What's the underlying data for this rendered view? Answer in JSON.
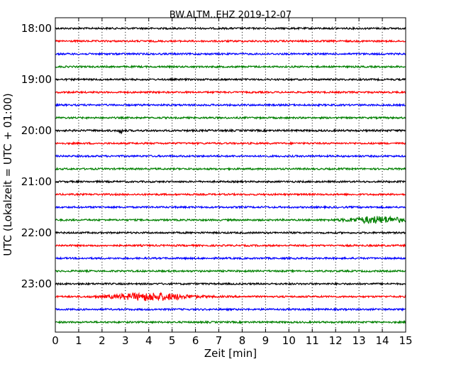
{
  "chart_data": {
    "type": "line",
    "title": "BW.ALTM..EHZ 2019-12-07",
    "xlabel": "Zeit  [min]",
    "ylabel": "UTC (Lokalzeit = UTC + 01:00)",
    "xlim": [
      0,
      15
    ],
    "x_ticks": [
      "0",
      "1",
      "2",
      "3",
      "4",
      "5",
      "6",
      "7",
      "8",
      "9",
      "10",
      "11",
      "12",
      "13",
      "14",
      "15"
    ],
    "y_ticks": [
      "18:00",
      "19:00",
      "20:00",
      "21:00",
      "22:00",
      "23:00"
    ],
    "trace_interval_minutes": 15,
    "trace_colors": [
      "#000000",
      "#ff0000",
      "#0000ff",
      "#008000"
    ],
    "grid": "vertical dotted lines at each minute",
    "traces": [
      {
        "start": "18:00",
        "color": "#000000",
        "amplitude": 1.0
      },
      {
        "start": "18:15",
        "color": "#ff0000",
        "amplitude": 1.0
      },
      {
        "start": "18:30",
        "color": "#0000ff",
        "amplitude": 1.0
      },
      {
        "start": "18:45",
        "color": "#008000",
        "amplitude": 1.0
      },
      {
        "start": "19:00",
        "color": "#000000",
        "amplitude": 1.0
      },
      {
        "start": "19:15",
        "color": "#ff0000",
        "amplitude": 1.0
      },
      {
        "start": "19:30",
        "color": "#0000ff",
        "amplitude": 1.0
      },
      {
        "start": "19:45",
        "color": "#008000",
        "amplitude": 1.0
      },
      {
        "start": "20:00",
        "color": "#000000",
        "amplitude": 1.1,
        "events": [
          {
            "x": 2.8,
            "amp": 3.5,
            "dur": 0.08
          }
        ]
      },
      {
        "start": "20:15",
        "color": "#ff0000",
        "amplitude": 1.0
      },
      {
        "start": "20:30",
        "color": "#0000ff",
        "amplitude": 1.0
      },
      {
        "start": "20:45",
        "color": "#008000",
        "amplitude": 1.0
      },
      {
        "start": "21:00",
        "color": "#000000",
        "amplitude": 1.0
      },
      {
        "start": "21:15",
        "color": "#ff0000",
        "amplitude": 1.0
      },
      {
        "start": "21:30",
        "color": "#0000ff",
        "amplitude": 1.0
      },
      {
        "start": "21:45",
        "color": "#008000",
        "amplitude": 1.0,
        "events": [
          {
            "x": 13.8,
            "amp": 4.5,
            "dur": 1.2
          }
        ]
      },
      {
        "start": "22:00",
        "color": "#000000",
        "amplitude": 1.0
      },
      {
        "start": "22:15",
        "color": "#ff0000",
        "amplitude": 1.0
      },
      {
        "start": "22:30",
        "color": "#0000ff",
        "amplitude": 1.0
      },
      {
        "start": "22:45",
        "color": "#008000",
        "amplitude": 1.0
      },
      {
        "start": "23:00",
        "color": "#000000",
        "amplitude": 1.0
      },
      {
        "start": "23:15",
        "color": "#ff0000",
        "amplitude": 1.0,
        "events": [
          {
            "x": 4.1,
            "amp": 5.0,
            "dur": 1.6
          }
        ]
      },
      {
        "start": "23:30",
        "color": "#0000ff",
        "amplitude": 1.0
      },
      {
        "start": "23:45",
        "color": "#008000",
        "amplitude": 1.0
      }
    ]
  }
}
